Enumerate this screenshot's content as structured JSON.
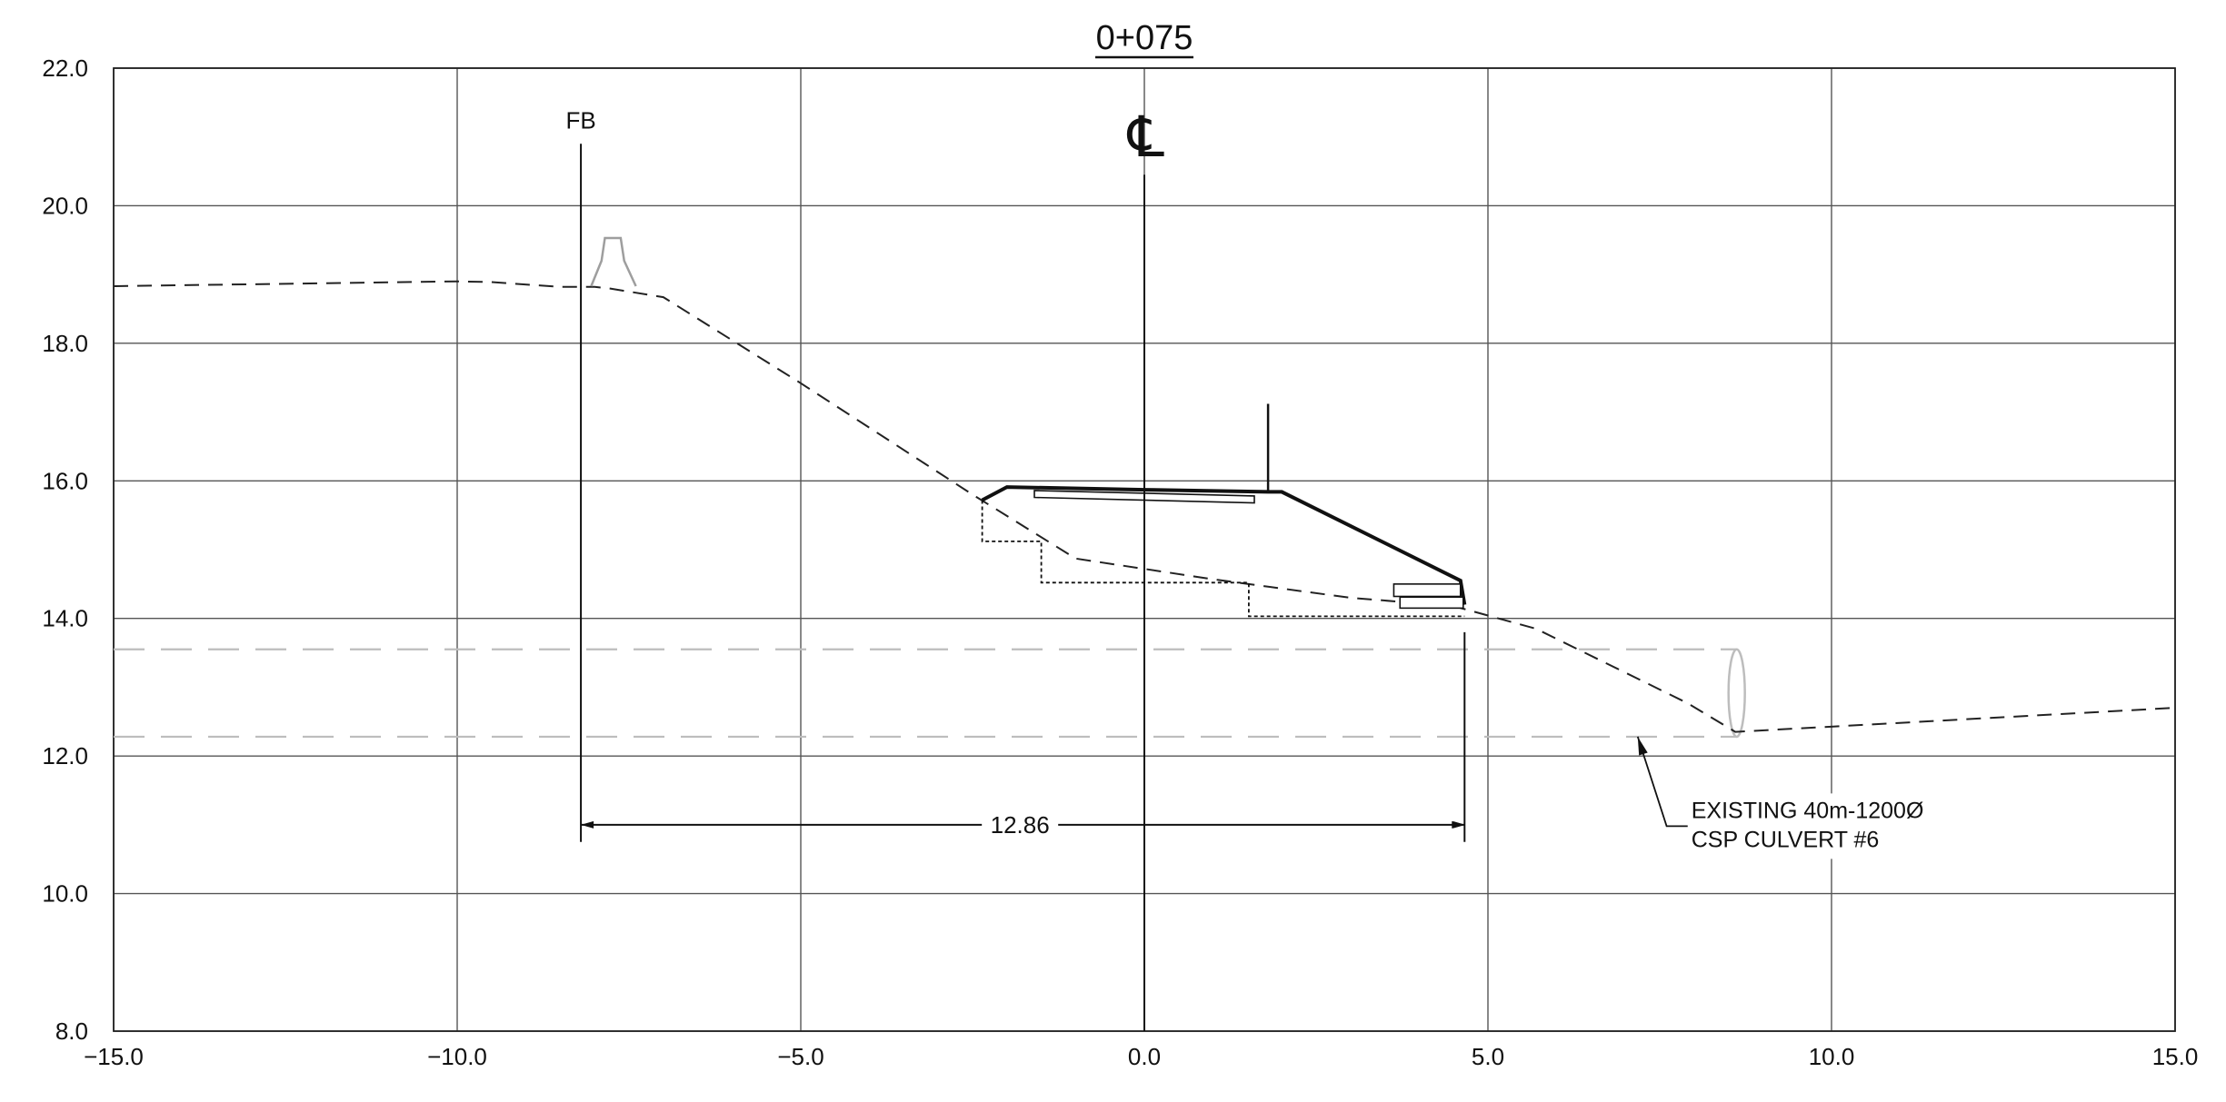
{
  "title": "0+075",
  "centerline_label": "℄",
  "fb_label": "FB",
  "dimension": {
    "from_x": -8.2,
    "to_x": 4.66,
    "label": "12.86"
  },
  "culvert_note": [
    "EXISTING 40m-1200Ø",
    "CSP CULVERT #6"
  ],
  "colors": {
    "ink": "#111111",
    "grid": "#555555",
    "culvert": "#bdbdbd",
    "existing_ground": "#222222"
  },
  "chart_data": {
    "type": "cross-section",
    "title": "0+075",
    "xlim": [
      -15,
      15
    ],
    "ylim": [
      8,
      22
    ],
    "grid": true,
    "x_ticks": [
      {
        "value": -15,
        "label": "−15.0"
      },
      {
        "value": -10,
        "label": "−10.0"
      },
      {
        "value": -5,
        "label": "−5.0"
      },
      {
        "value": 0,
        "label": "0.0"
      },
      {
        "value": 5,
        "label": "5.0"
      },
      {
        "value": 10,
        "label": "10.0"
      },
      {
        "value": 15,
        "label": "15.0"
      }
    ],
    "y_ticks": [
      {
        "value": 8,
        "label": "8.0"
      },
      {
        "value": 10,
        "label": "10.0"
      },
      {
        "value": 12,
        "label": "12.0"
      },
      {
        "value": 14,
        "label": "14.0"
      },
      {
        "value": 16,
        "label": "16.0"
      },
      {
        "value": 18,
        "label": "18.0"
      },
      {
        "value": 20,
        "label": "20.0"
      },
      {
        "value": 22,
        "label": "22.0"
      }
    ],
    "existing_ground": [
      [
        -15,
        18.83
      ],
      [
        -10,
        18.9
      ],
      [
        -9.5,
        18.89
      ],
      [
        -8.5,
        18.82
      ],
      [
        -8.0,
        18.82
      ],
      [
        -7.8,
        18.8
      ],
      [
        -7.0,
        18.67
      ],
      [
        -5.0,
        17.42
      ],
      [
        -2.5,
        15.8
      ],
      [
        -1.0,
        14.87
      ],
      [
        1.0,
        14.57
      ],
      [
        3.0,
        14.3
      ],
      [
        4.5,
        14.18
      ],
      [
        5.7,
        13.85
      ],
      [
        7.9,
        12.77
      ],
      [
        8.6,
        12.35
      ],
      [
        15,
        12.7
      ]
    ],
    "proposed_section": [
      [
        -2.36,
        15.72
      ],
      [
        -2.0,
        15.91
      ],
      [
        0.0,
        15.87
      ],
      [
        1.8,
        15.84
      ],
      [
        2.0,
        15.84
      ],
      [
        4.6,
        14.55
      ],
      [
        4.66,
        14.2
      ]
    ],
    "pavement_layer": [
      [
        -1.6,
        15.86
      ],
      [
        1.6,
        15.78
      ],
      [
        1.6,
        15.68
      ],
      [
        -1.6,
        15.76
      ]
    ],
    "post": [
      [
        1.8,
        15.82
      ],
      [
        1.8,
        17.12
      ]
    ],
    "excavation_benches": [
      [
        -2.36,
        15.72
      ],
      [
        -2.36,
        15.12
      ],
      [
        -1.5,
        15.12
      ],
      [
        -1.5,
        14.52
      ],
      [
        1.52,
        14.52
      ],
      [
        1.52,
        14.03
      ],
      [
        4.66,
        14.03
      ]
    ],
    "ditch_blocks": [
      {
        "x1": 3.63,
        "x2": 4.6,
        "y1": 14.32,
        "y2": 14.5
      },
      {
        "x1": 3.72,
        "x2": 4.64,
        "y1": 14.15,
        "y2": 14.31
      }
    ],
    "centerline_x": 0,
    "fb_line": {
      "x": -8.2,
      "y_top": 20.9,
      "y_bottom": 10.75
    },
    "right_extension_line": {
      "x": 4.66,
      "y_top": 13.8,
      "y_bottom": 10.75
    },
    "dimension_y": 11.0,
    "culvert": {
      "top": 13.55,
      "bottom": 12.28,
      "end_x": 8.62
    },
    "guardrail_barrier": [
      [
        -8.05,
        18.83
      ],
      [
        -7.9,
        19.2
      ],
      [
        -7.85,
        19.53
      ],
      [
        -7.62,
        19.53
      ],
      [
        -7.57,
        19.2
      ],
      [
        -7.4,
        18.83
      ]
    ],
    "leader_points": [
      [
        7.18,
        12.28
      ],
      [
        7.6,
        10.98
      ],
      [
        7.92,
        10.98
      ]
    ]
  }
}
